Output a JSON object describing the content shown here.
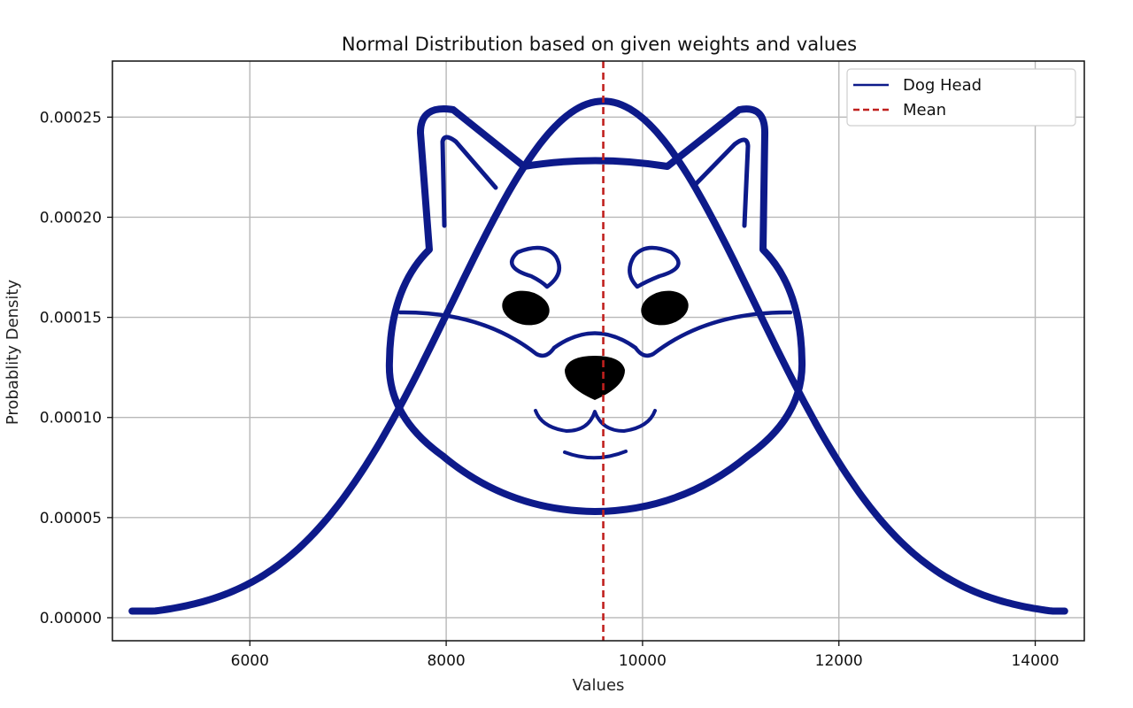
{
  "chart_data": {
    "type": "line",
    "title": "Normal Distribution based on given weights and values",
    "xlabel": "Values",
    "ylabel": "Probablity Density",
    "xlim": [
      4600,
      14500
    ],
    "ylim": [
      -1.15e-05,
      0.000278
    ],
    "xticks": [
      6000,
      8000,
      10000,
      12000,
      14000
    ],
    "xtick_labels": [
      "6000",
      "8000",
      "10000",
      "12000",
      "14000"
    ],
    "yticks": [
      0,
      5e-05,
      0.0001,
      0.00015,
      0.0002,
      0.00025
    ],
    "ytick_labels": [
      "0.00000",
      "0.00005",
      "0.00010",
      "0.00015",
      "0.00020",
      "0.00025"
    ],
    "grid": true,
    "legend_position": "top-right",
    "series": [
      {
        "name": "Dog Head",
        "color": "#0d1a8a",
        "distribution": {
          "mean": 9600,
          "std": 1548,
          "peak_density": 0.000258
        },
        "x": [
          4800,
          5400,
          6000,
          6600,
          7200,
          7800,
          8400,
          9000,
          9600,
          10200,
          10800,
          11400,
          12000,
          12600,
          13200,
          13800,
          14300
        ],
        "y": [
          3.3e-06,
          1.1e-05,
          1.9e-05,
          3.7e-05,
          7.6e-05,
          0.000133,
          0.000197,
          0.000243,
          0.000258,
          0.000243,
          0.000197,
          0.000133,
          7.6e-05,
          3.7e-05,
          1.6e-05,
          5.5e-06,
          3.3e-06
        ]
      },
      {
        "name": "Mean",
        "color": "#c0201e",
        "style": "dashed",
        "x_value": 9600
      }
    ]
  },
  "colors": {
    "curve": "#0d1a8a",
    "mean_line": "#c0201e",
    "grid": "#b8b8b8",
    "background": "#ffffff"
  }
}
